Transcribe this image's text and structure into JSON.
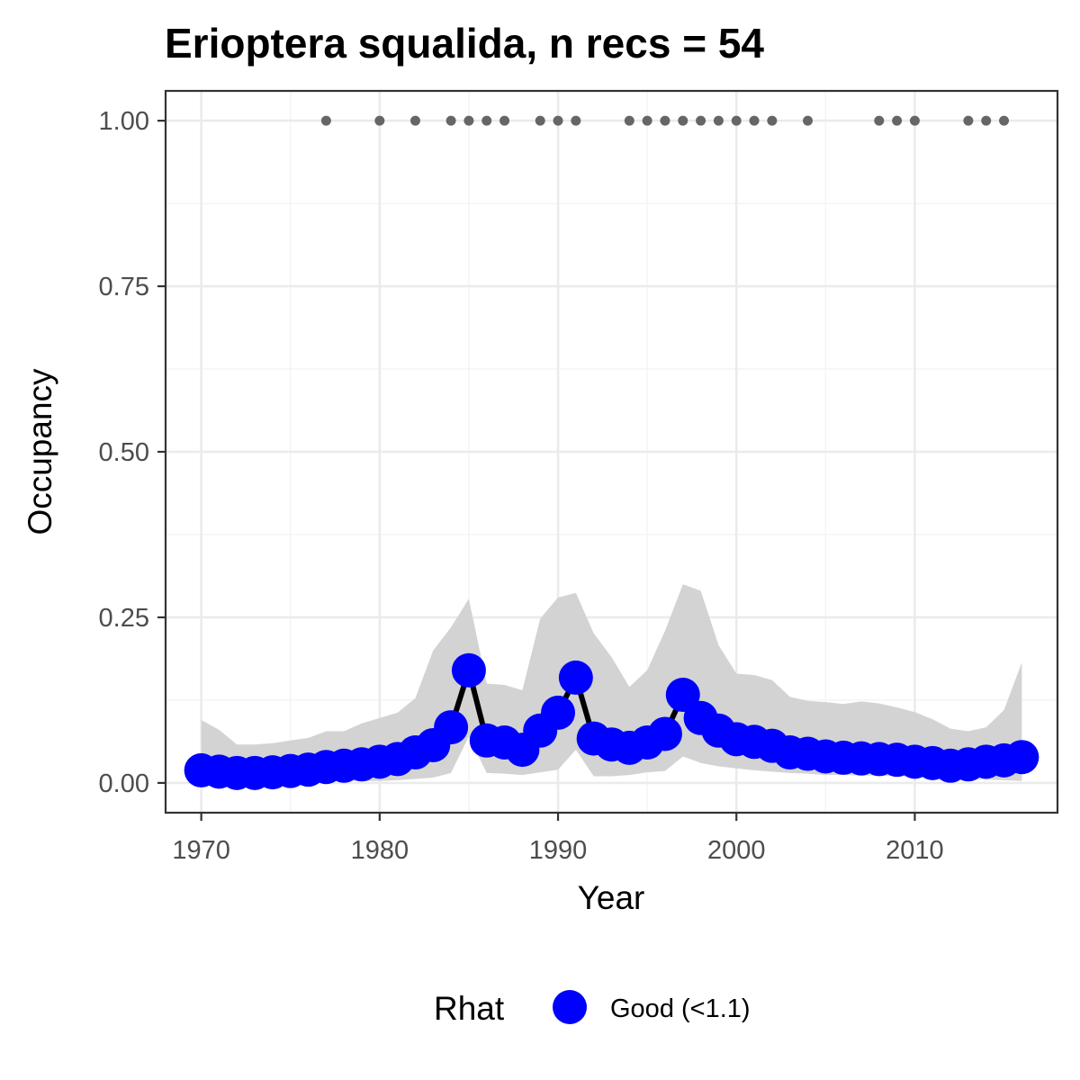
{
  "chart_data": {
    "type": "line",
    "title": "Erioptera squalida, n recs = 54",
    "xlabel": "Year",
    "ylabel": "Occupancy",
    "xlim": [
      1968,
      2018
    ],
    "ylim": [
      -0.045,
      1.045
    ],
    "x_ticks": [
      1970,
      1980,
      1990,
      2000,
      2010
    ],
    "x_tick_labels": [
      "1970",
      "1980",
      "1990",
      "2000",
      "2010"
    ],
    "y_ticks": [
      0,
      0.25,
      0.5,
      0.75,
      1.0
    ],
    "y_tick_labels": [
      "0.00",
      "0.25",
      "0.50",
      "0.75",
      "1.00"
    ],
    "grid": true,
    "legend": {
      "title": "Rhat",
      "position": "bottom",
      "entries": [
        {
          "label": "Good (<1.1)",
          "color": "#0000ff"
        }
      ]
    },
    "colors": {
      "points": "#0000ff",
      "line": "#000000",
      "ribbon": "#d3d3d3",
      "records": "#666666",
      "grid_major": "#ebebeb",
      "grid_minor": "#f4f4f4",
      "border": "#333333"
    },
    "series": [
      {
        "x": [
          1970,
          1971,
          1972,
          1973,
          1974,
          1975,
          1976,
          1977,
          1978,
          1979,
          1980,
          1981,
          1982,
          1983,
          1984,
          1985,
          1986,
          1987,
          1988,
          1989,
          1990,
          1991,
          1992,
          1993,
          1994,
          1995,
          1996,
          1997,
          1998,
          1999,
          2000,
          2001,
          2002,
          2003,
          2004,
          2005,
          2006,
          2007,
          2008,
          2009,
          2010,
          2011,
          2012,
          2013,
          2014,
          2015,
          2016
        ],
        "values": [
          0.019,
          0.017,
          0.015,
          0.015,
          0.016,
          0.018,
          0.02,
          0.024,
          0.026,
          0.028,
          0.032,
          0.036,
          0.046,
          0.057,
          0.084,
          0.17,
          0.064,
          0.061,
          0.05,
          0.079,
          0.106,
          0.159,
          0.067,
          0.058,
          0.053,
          0.061,
          0.074,
          0.133,
          0.098,
          0.079,
          0.066,
          0.062,
          0.056,
          0.046,
          0.044,
          0.04,
          0.038,
          0.037,
          0.036,
          0.035,
          0.032,
          0.03,
          0.026,
          0.028,
          0.032,
          0.034,
          0.039
        ],
        "lower": [
          0.002,
          0.002,
          0.002,
          0.001,
          0.001,
          0.002,
          0.002,
          0.002,
          0.003,
          0.003,
          0.003,
          0.004,
          0.006,
          0.008,
          0.015,
          0.07,
          0.015,
          0.014,
          0.012,
          0.016,
          0.02,
          0.05,
          0.01,
          0.01,
          0.012,
          0.016,
          0.018,
          0.04,
          0.03,
          0.025,
          0.022,
          0.019,
          0.017,
          0.015,
          0.014,
          0.012,
          0.012,
          0.011,
          0.011,
          0.01,
          0.009,
          0.008,
          0.006,
          0.006,
          0.005,
          0.004,
          0.003
        ],
        "upper": [
          0.095,
          0.08,
          0.058,
          0.058,
          0.06,
          0.064,
          0.068,
          0.078,
          0.078,
          0.09,
          0.098,
          0.106,
          0.128,
          0.2,
          0.235,
          0.278,
          0.15,
          0.148,
          0.14,
          0.248,
          0.28,
          0.287,
          0.226,
          0.19,
          0.145,
          0.17,
          0.23,
          0.3,
          0.29,
          0.208,
          0.165,
          0.163,
          0.155,
          0.13,
          0.124,
          0.122,
          0.119,
          0.123,
          0.12,
          0.114,
          0.107,
          0.096,
          0.082,
          0.078,
          0.084,
          0.11,
          0.182
        ]
      }
    ],
    "record_years": [
      1977,
      1980,
      1982,
      1984,
      1985,
      1986,
      1987,
      1989,
      1990,
      1991,
      1994,
      1995,
      1996,
      1997,
      1998,
      1999,
      2000,
      2001,
      2002,
      2004,
      2008,
      2009,
      2010,
      2013,
      2014,
      2015
    ],
    "record_value": 1.0
  }
}
